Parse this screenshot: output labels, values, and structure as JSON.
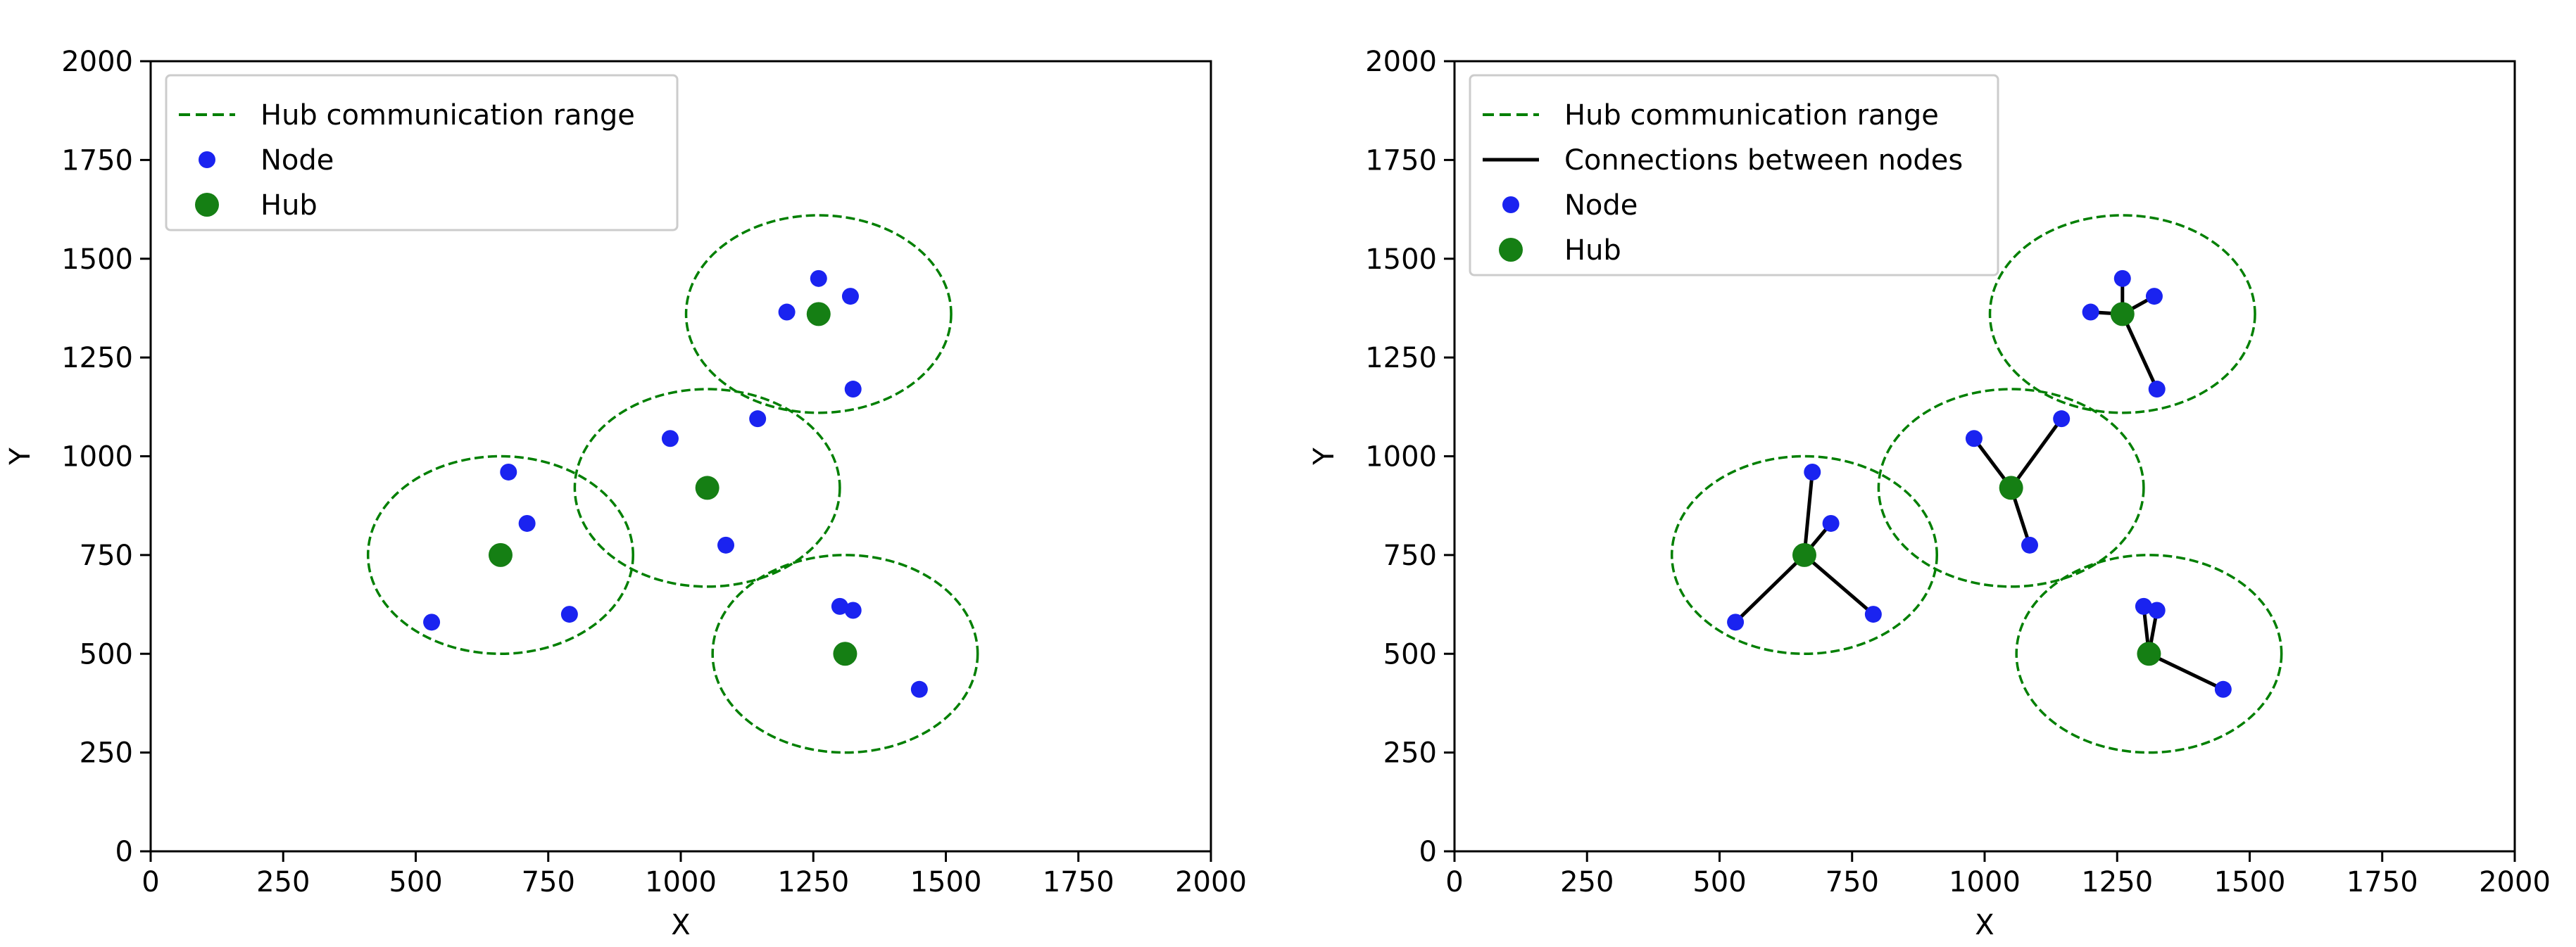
{
  "chart_data": [
    {
      "type": "scatter",
      "title": "",
      "xlabel": "X",
      "ylabel": "Y",
      "xlim": [
        0,
        2000
      ],
      "ylim": [
        0,
        2000
      ],
      "xticks": [
        "0",
        "250",
        "500",
        "750",
        "1000",
        "1250",
        "1500",
        "1750",
        "2000"
      ],
      "yticks": [
        "0",
        "250",
        "500",
        "750",
        "1000",
        "1250",
        "1500",
        "1750",
        "2000"
      ],
      "grid": false,
      "legend_position": "top-left",
      "legend": [
        {
          "label": "Hub communication range",
          "kind": "dashed-line",
          "color": "#007f00"
        },
        {
          "label": "Node",
          "kind": "marker",
          "color": "#1a23f0"
        },
        {
          "label": "Hub",
          "kind": "marker-large",
          "color": "#157f14"
        }
      ],
      "series": [
        {
          "name": "Node",
          "color": "#1a23f0",
          "points": [
            [
              1260,
              1450
            ],
            [
              1320,
              1405
            ],
            [
              1200,
              1365
            ],
            [
              1325,
              1170
            ],
            [
              980,
              1045
            ],
            [
              1145,
              1095
            ],
            [
              1085,
              775
            ],
            [
              675,
              960
            ],
            [
              710,
              830
            ],
            [
              530,
              580
            ],
            [
              790,
              600
            ],
            [
              1300,
              620
            ],
            [
              1325,
              610
            ],
            [
              1450,
              410
            ]
          ]
        },
        {
          "name": "Hub",
          "color": "#157f14",
          "points": [
            [
              1260,
              1360
            ],
            [
              1050,
              920
            ],
            [
              660,
              750
            ],
            [
              1310,
              500
            ]
          ]
        },
        {
          "name": "Hub communication range",
          "color": "#007f00",
          "radius": 250
        }
      ],
      "connections": []
    },
    {
      "type": "scatter",
      "title": "",
      "xlabel": "X",
      "ylabel": "Y",
      "xlim": [
        0,
        2000
      ],
      "ylim": [
        0,
        2000
      ],
      "xticks": [
        "0",
        "250",
        "500",
        "750",
        "1000",
        "1250",
        "1500",
        "1750",
        "2000"
      ],
      "yticks": [
        "0",
        "250",
        "500",
        "750",
        "1000",
        "1250",
        "1500",
        "1750",
        "2000"
      ],
      "grid": false,
      "legend_position": "top-left",
      "legend": [
        {
          "label": "Hub communication range",
          "kind": "dashed-line",
          "color": "#007f00"
        },
        {
          "label": "Connections between nodes",
          "kind": "solid-line",
          "color": "#000000"
        },
        {
          "label": "Node",
          "kind": "marker",
          "color": "#1a23f0"
        },
        {
          "label": "Hub",
          "kind": "marker-large",
          "color": "#157f14"
        }
      ],
      "series": [
        {
          "name": "Node",
          "color": "#1a23f0",
          "points": [
            [
              1260,
              1450
            ],
            [
              1320,
              1405
            ],
            [
              1200,
              1365
            ],
            [
              1325,
              1170
            ],
            [
              980,
              1045
            ],
            [
              1145,
              1095
            ],
            [
              1085,
              775
            ],
            [
              675,
              960
            ],
            [
              710,
              830
            ],
            [
              530,
              580
            ],
            [
              790,
              600
            ],
            [
              1300,
              620
            ],
            [
              1325,
              610
            ],
            [
              1450,
              410
            ]
          ]
        },
        {
          "name": "Hub",
          "color": "#157f14",
          "points": [
            [
              1260,
              1360
            ],
            [
              1050,
              920
            ],
            [
              660,
              750
            ],
            [
              1310,
              500
            ]
          ]
        },
        {
          "name": "Hub communication range",
          "color": "#007f00",
          "radius": 250
        }
      ],
      "connections": [
        [
          [
            1260,
            1360
          ],
          [
            1260,
            1450
          ]
        ],
        [
          [
            1260,
            1360
          ],
          [
            1320,
            1405
          ]
        ],
        [
          [
            1260,
            1360
          ],
          [
            1200,
            1365
          ]
        ],
        [
          [
            1260,
            1360
          ],
          [
            1325,
            1170
          ]
        ],
        [
          [
            1050,
            920
          ],
          [
            980,
            1045
          ]
        ],
        [
          [
            1050,
            920
          ],
          [
            1145,
            1095
          ]
        ],
        [
          [
            1050,
            920
          ],
          [
            1085,
            775
          ]
        ],
        [
          [
            660,
            750
          ],
          [
            675,
            960
          ]
        ],
        [
          [
            660,
            750
          ],
          [
            710,
            830
          ]
        ],
        [
          [
            660,
            750
          ],
          [
            530,
            580
          ]
        ],
        [
          [
            660,
            750
          ],
          [
            790,
            600
          ]
        ],
        [
          [
            1310,
            500
          ],
          [
            1300,
            620
          ]
        ],
        [
          [
            1310,
            500
          ],
          [
            1325,
            610
          ]
        ],
        [
          [
            1310,
            500
          ],
          [
            1450,
            410
          ]
        ]
      ]
    }
  ]
}
